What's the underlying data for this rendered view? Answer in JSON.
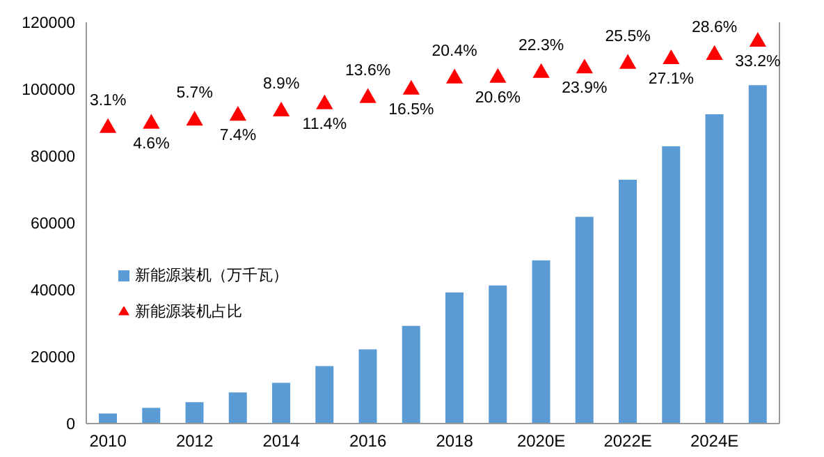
{
  "chart_data": {
    "type": "bar",
    "categories": [
      "2010",
      null,
      "2012",
      null,
      "2014",
      null,
      "2016",
      null,
      "2018",
      null,
      "2020E",
      null,
      "2022E",
      null,
      "2024E",
      null
    ],
    "series": [
      {
        "name": "新能源装机（万千瓦）",
        "color": "#5b9bd5",
        "values": [
          3000,
          4700,
          6400,
          9300,
          12200,
          17200,
          22200,
          29200,
          39200,
          41300,
          48800,
          61800,
          72900,
          82900,
          92500,
          101200
        ]
      },
      {
        "name": "新能源装机占比",
        "type": "scatter",
        "axis": "y2",
        "marker": "triangle",
        "color": "#ff0000",
        "data_labels": true,
        "values": [
          3.1,
          4.6,
          5.7,
          7.4,
          8.9,
          11.4,
          13.6,
          16.5,
          20.4,
          20.6,
          22.3,
          23.9,
          25.5,
          27.1,
          28.6,
          33.2
        ],
        "value_labels": [
          "3.1%",
          "4.6%",
          "5.7%",
          "7.4%",
          "8.9%",
          "11.4%",
          "13.6%",
          "16.5%",
          "20.4%",
          "20.6%",
          "22.3%",
          "23.9%",
          "25.5%",
          "27.1%",
          "28.6%",
          "33.2%"
        ]
      }
    ],
    "ylim": [
      0,
      120000
    ],
    "yticks": [
      0,
      20000,
      40000,
      60000,
      80000,
      100000,
      120000
    ],
    "y2lim": [
      -100,
      40
    ],
    "legend": "left"
  }
}
